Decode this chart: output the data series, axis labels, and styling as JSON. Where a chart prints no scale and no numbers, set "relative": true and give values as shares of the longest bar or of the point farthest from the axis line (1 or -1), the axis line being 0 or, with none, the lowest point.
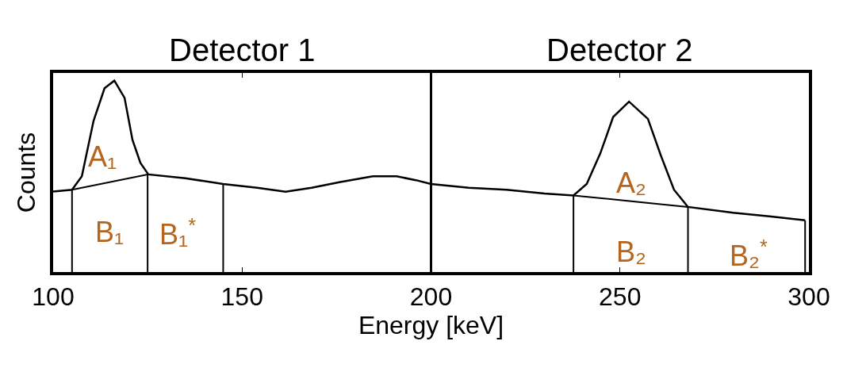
{
  "chart_data": {
    "type": "line",
    "relative": true,
    "xlabel": "Energy [keV]",
    "ylabel": "Counts",
    "xlim": [
      100,
      300
    ],
    "xticks": [
      100,
      150,
      200,
      250,
      300
    ],
    "grid": false,
    "marker": "none",
    "line_style": "solid",
    "series": [
      {
        "color": "#000000",
        "x": [
          100,
          105,
          107.6,
          110.7,
          113.6,
          116.2,
          118.9,
          121,
          123.1,
          125.2,
          135,
          145,
          154,
          161.5,
          168.4,
          176,
          184.6,
          190.9,
          196,
          200,
          210,
          220,
          230,
          237.7,
          241.2,
          244.8,
          248.2,
          252.4,
          257.4,
          260.8,
          264.3,
          268,
          280,
          290,
          299
        ],
        "values": [
          0.42,
          0.43,
          0.5,
          0.79,
          0.96,
          1.0,
          0.91,
          0.69,
          0.57,
          0.51,
          0.49,
          0.46,
          0.44,
          0.42,
          0.44,
          0.47,
          0.5,
          0.5,
          0.48,
          0.46,
          0.44,
          0.43,
          0.41,
          0.4,
          0.46,
          0.62,
          0.81,
          0.89,
          0.8,
          0.61,
          0.43,
          0.34,
          0.31,
          0.29,
          0.27
        ]
      },
      {
        "color": "#000000",
        "x": [
          105,
          125
        ],
        "values": [
          0.43,
          0.51
        ]
      },
      {
        "color": "#000000",
        "x": [
          237.7,
          268
        ],
        "values": [
          0.4,
          0.34
        ]
      },
      {
        "color": "#000000",
        "x": [
          105,
          105,
          null,
          125,
          125,
          null,
          145,
          145,
          null,
          237.7,
          237.7,
          null,
          268,
          268,
          null,
          299,
          299
        ],
        "values": [
          0,
          0.43,
          null,
          0,
          0.51,
          null,
          0,
          0.46,
          null,
          0,
          0.4,
          null,
          0,
          0.34,
          null,
          0,
          0.27
        ]
      }
    ],
    "ref_lines": [
      {
        "axis": "x",
        "value": 200,
        "color": "#000000"
      }
    ],
    "annotations": [
      "Detector 1",
      "Detector 2",
      "A₁",
      "B₁",
      "B₁$^{*}$",
      "A₂",
      "B₂",
      "B₂$^{*}$"
    ]
  }
}
